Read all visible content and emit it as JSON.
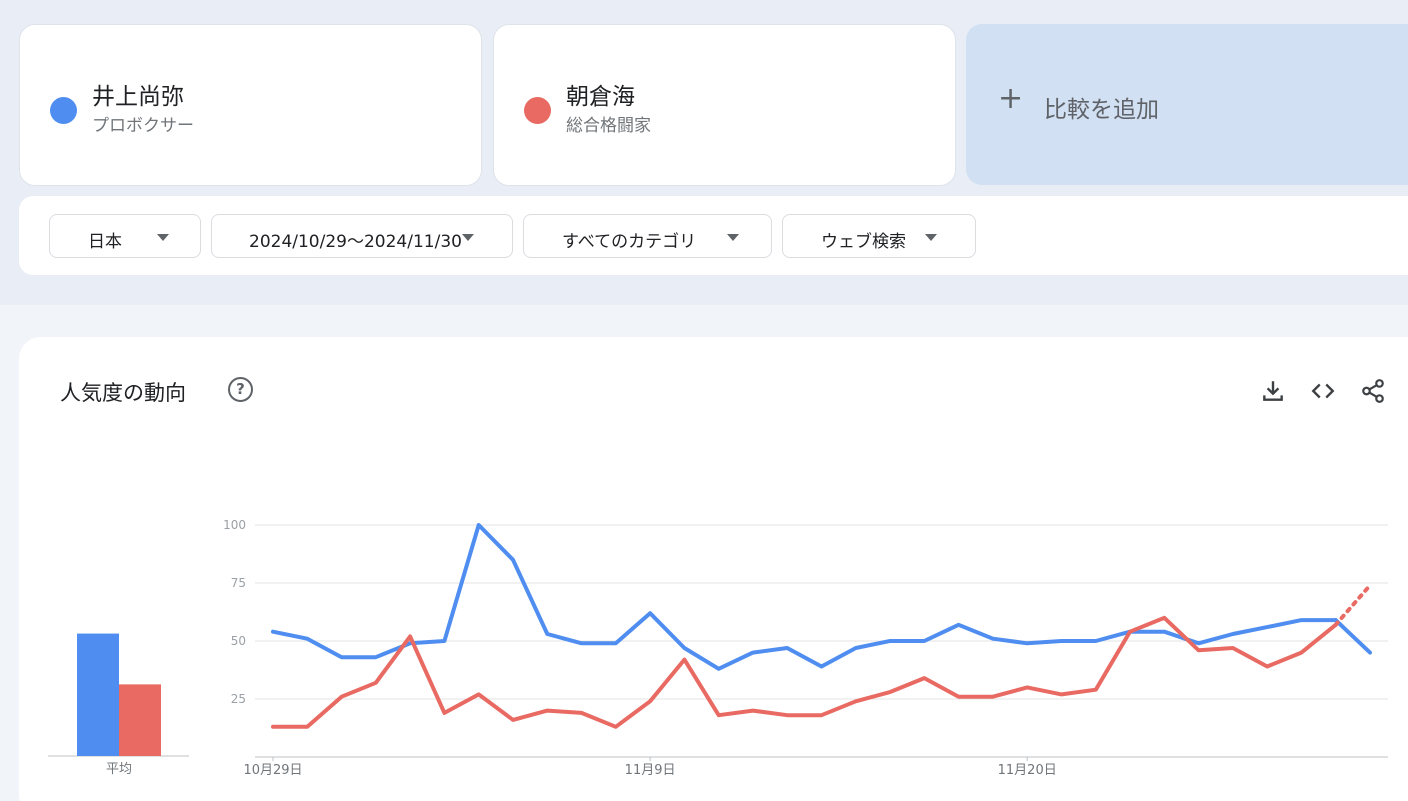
{
  "terms": [
    {
      "name": "井上尚弥",
      "type": "プロボクサー",
      "color": "#4f8ef0"
    },
    {
      "name": "朝倉海",
      "type": "総合格闘家",
      "color": "#e86a62"
    }
  ],
  "add_compare": {
    "icon": "plus-icon",
    "label": "比較を追加"
  },
  "filters": {
    "region": "日本",
    "period": "2024/10/29～2024/11/30",
    "category": "すべてのカテゴリ",
    "search_type": "ウェブ検索"
  },
  "trend_panel": {
    "title": "人気度の動向",
    "icons": [
      "help-icon",
      "download-icon",
      "embed-code-icon",
      "share-icon"
    ],
    "average_label": "平均"
  },
  "chart_data": {
    "type": "line",
    "x_labels": [
      "10月29日",
      "11月9日",
      "11月20日"
    ],
    "x_label_positions": [
      0,
      11,
      22
    ],
    "y_ticks": [
      25,
      50,
      75,
      100
    ],
    "ylim": [
      0,
      100
    ],
    "grid": true,
    "partial_data_last_point": true,
    "averages": [
      53,
      31
    ],
    "series": [
      {
        "color": "#4f8ef0",
        "values": [
          54,
          51,
          43,
          43,
          49,
          50,
          100,
          85,
          53,
          49,
          49,
          62,
          47,
          38,
          45,
          47,
          39,
          47,
          50,
          50,
          57,
          51,
          49,
          50,
          50,
          54,
          54,
          49,
          53,
          56,
          59,
          59,
          45
        ]
      },
      {
        "color": "#e86a62",
        "values": [
          13,
          13,
          26,
          32,
          52,
          19,
          27,
          16,
          20,
          19,
          13,
          24,
          42,
          18,
          20,
          18,
          18,
          24,
          28,
          34,
          26,
          26,
          30,
          27,
          29,
          54,
          60,
          46,
          47,
          39,
          45,
          57,
          74
        ]
      }
    ]
  }
}
